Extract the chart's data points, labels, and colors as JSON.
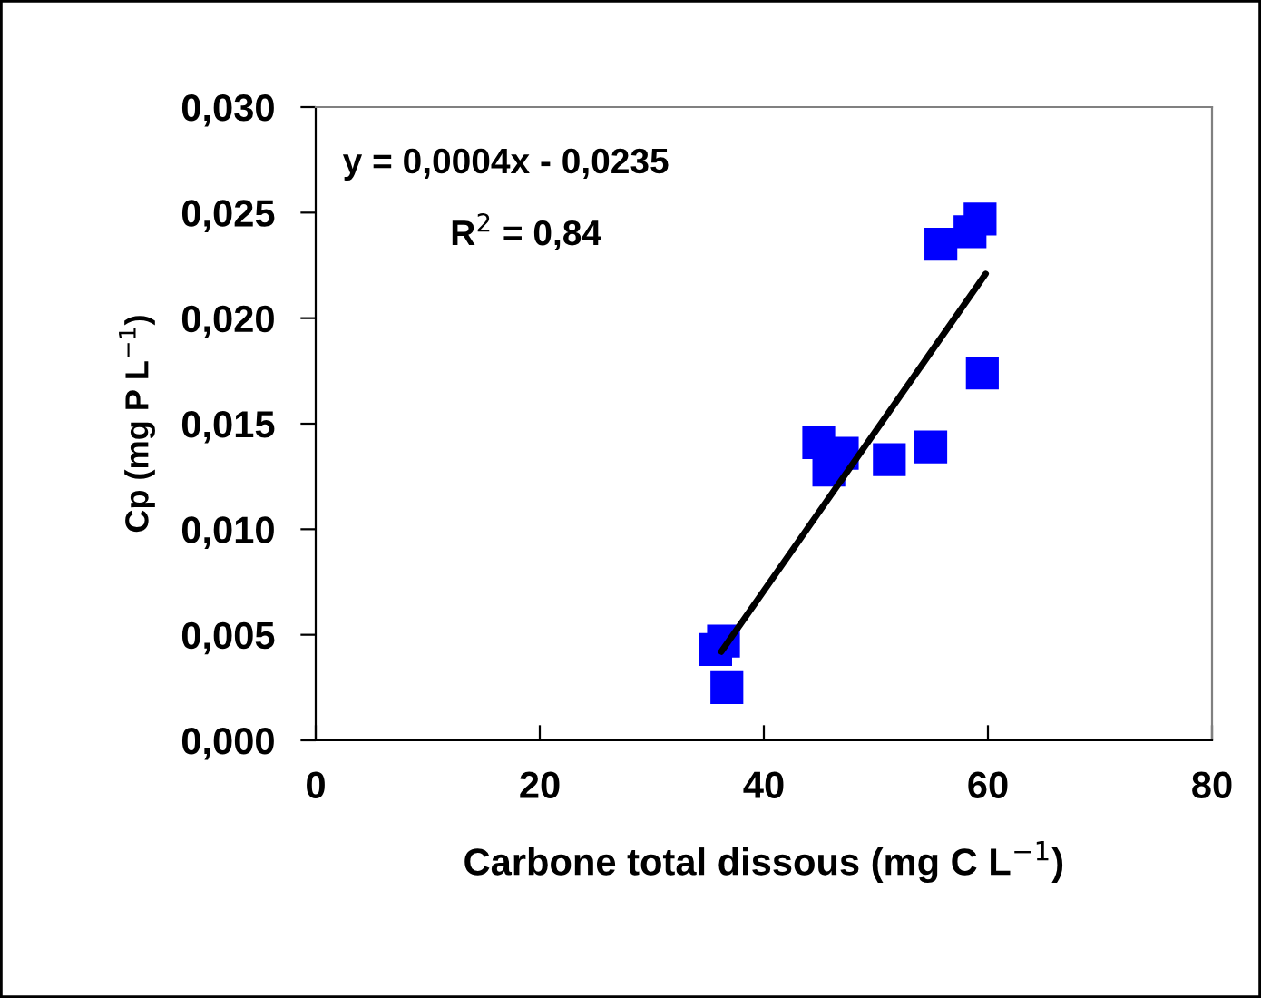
{
  "chart_data": {
    "type": "scatter",
    "xlabel": "Carbone total dissous (mg C L$^{−1}$)",
    "ylabel": "Cp (mg P L$^{−1}$)",
    "annotations": [
      "y = 0,0004x - 0,0235",
      "R$^{2}$ = 0,84"
    ],
    "series": [
      {
        "color": "#0000ff",
        "marker": "square",
        "x": [
          35.7,
          36.4,
          36.7,
          44.9,
          47.0,
          45.8,
          51.2,
          54.9,
          55.8,
          58.4,
          59.3,
          59.5
        ],
        "values": [
          0.0043,
          0.0047,
          0.0025,
          0.0141,
          0.0136,
          0.0128,
          0.0133,
          0.0139,
          0.0235,
          0.0241,
          0.0247,
          0.0174
        ]
      },
      {
        "type": "line",
        "color": "#000000",
        "marker": "none",
        "x": [
          36.2,
          59.8
        ],
        "values": [
          0.0042,
          0.0221
        ]
      }
    ],
    "xlim": [
      0,
      80
    ],
    "xticks": [
      0,
      20,
      40,
      60,
      80
    ],
    "ylim": [
      0,
      0.03
    ],
    "yticks": [
      {
        "value": 0,
        "label": "0,000"
      },
      {
        "value": 0.005,
        "label": "0,005"
      },
      {
        "value": 0.01,
        "label": "0,010"
      },
      {
        "value": 0.015,
        "label": "0,015"
      },
      {
        "value": 0.02,
        "label": "0,020"
      },
      {
        "value": 0.025,
        "label": "0,025"
      },
      {
        "value": 0.03,
        "label": "0,030"
      }
    ],
    "grid": false,
    "legend": false
  }
}
